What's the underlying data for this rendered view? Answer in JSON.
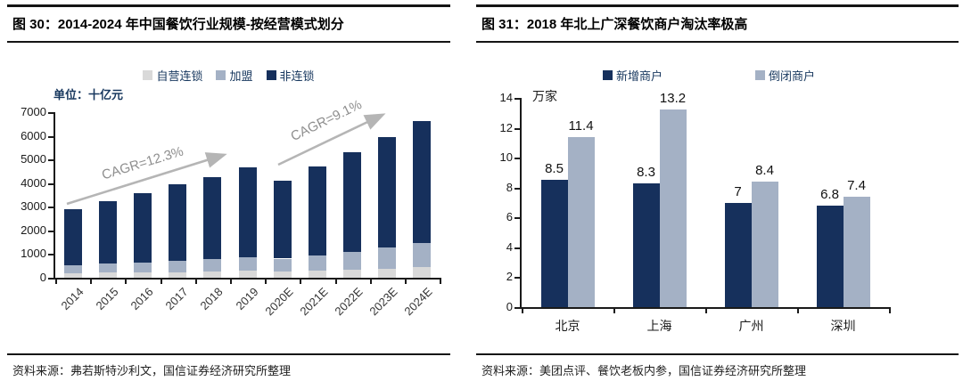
{
  "left_panel": {
    "source": "资料来源：弗若斯特沙利文，国信证券经济研究所整理"
  },
  "right_panel": {
    "source": "资料来源：美团点评、餐饮老板内参，国信证券经济研究所整理"
  },
  "colors": {
    "navy": "#16305c",
    "steel_blue_gray": "#a4b1c5",
    "light_gray": "#d9d9d9",
    "arrow_gray": "#b5b5b5",
    "header_rule": "#141414"
  },
  "chart_data": [
    {
      "type": "bar",
      "stacked": true,
      "title": "图 30：2014-2024 年中国餐饮行业规模-按经营模式划分",
      "unit": "单位：十亿元",
      "categories": [
        "2014",
        "2015",
        "2016",
        "2017",
        "2018",
        "2019",
        "2020E",
        "2021E",
        "2022E",
        "2023E",
        "2024E"
      ],
      "series": [
        {
          "name": "自营连锁",
          "color": "#d9d9d9",
          "values": [
            200,
            215,
            230,
            245,
            265,
            290,
            265,
            300,
            340,
            390,
            450
          ]
        },
        {
          "name": "加盟",
          "color": "#a4b1c5",
          "values": [
            330,
            375,
            420,
            470,
            525,
            590,
            545,
            640,
            750,
            880,
            1030
          ]
        },
        {
          "name": "非连锁",
          "color": "#16305c",
          "values": [
            2356,
            2641,
            2929,
            3249,
            3481,
            3792,
            3281,
            3749,
            4206,
            4661,
            5133
          ]
        }
      ],
      "totals": [
        2886,
        3231,
        3579,
        3964,
        4271,
        4672,
        4091,
        4689,
        5296,
        5931,
        6613
      ],
      "ylim": [
        0,
        7000
      ],
      "ytick_step": 1000,
      "grid": false,
      "legend_position": "top",
      "annotations": [
        {
          "text": "CAGR=12.3%"
        },
        {
          "text": "CAGR=9.1%"
        }
      ]
    },
    {
      "type": "bar",
      "grouped": true,
      "title": "图 31：2018 年北上广深餐饮商户淘汰率极高",
      "unit": "万家",
      "categories": [
        "北京",
        "上海",
        "广州",
        "深圳"
      ],
      "series": [
        {
          "name": "新增商户",
          "color": "#16305c",
          "values": [
            8.5,
            8.3,
            7,
            6.8
          ]
        },
        {
          "name": "倒闭商户",
          "color": "#a4b1c5",
          "values": [
            11.4,
            13.2,
            8.4,
            7.4
          ]
        }
      ],
      "ylim": [
        0,
        14
      ],
      "ytick_step": 2,
      "grid": false,
      "data_labels": true,
      "legend_position": "top"
    }
  ]
}
